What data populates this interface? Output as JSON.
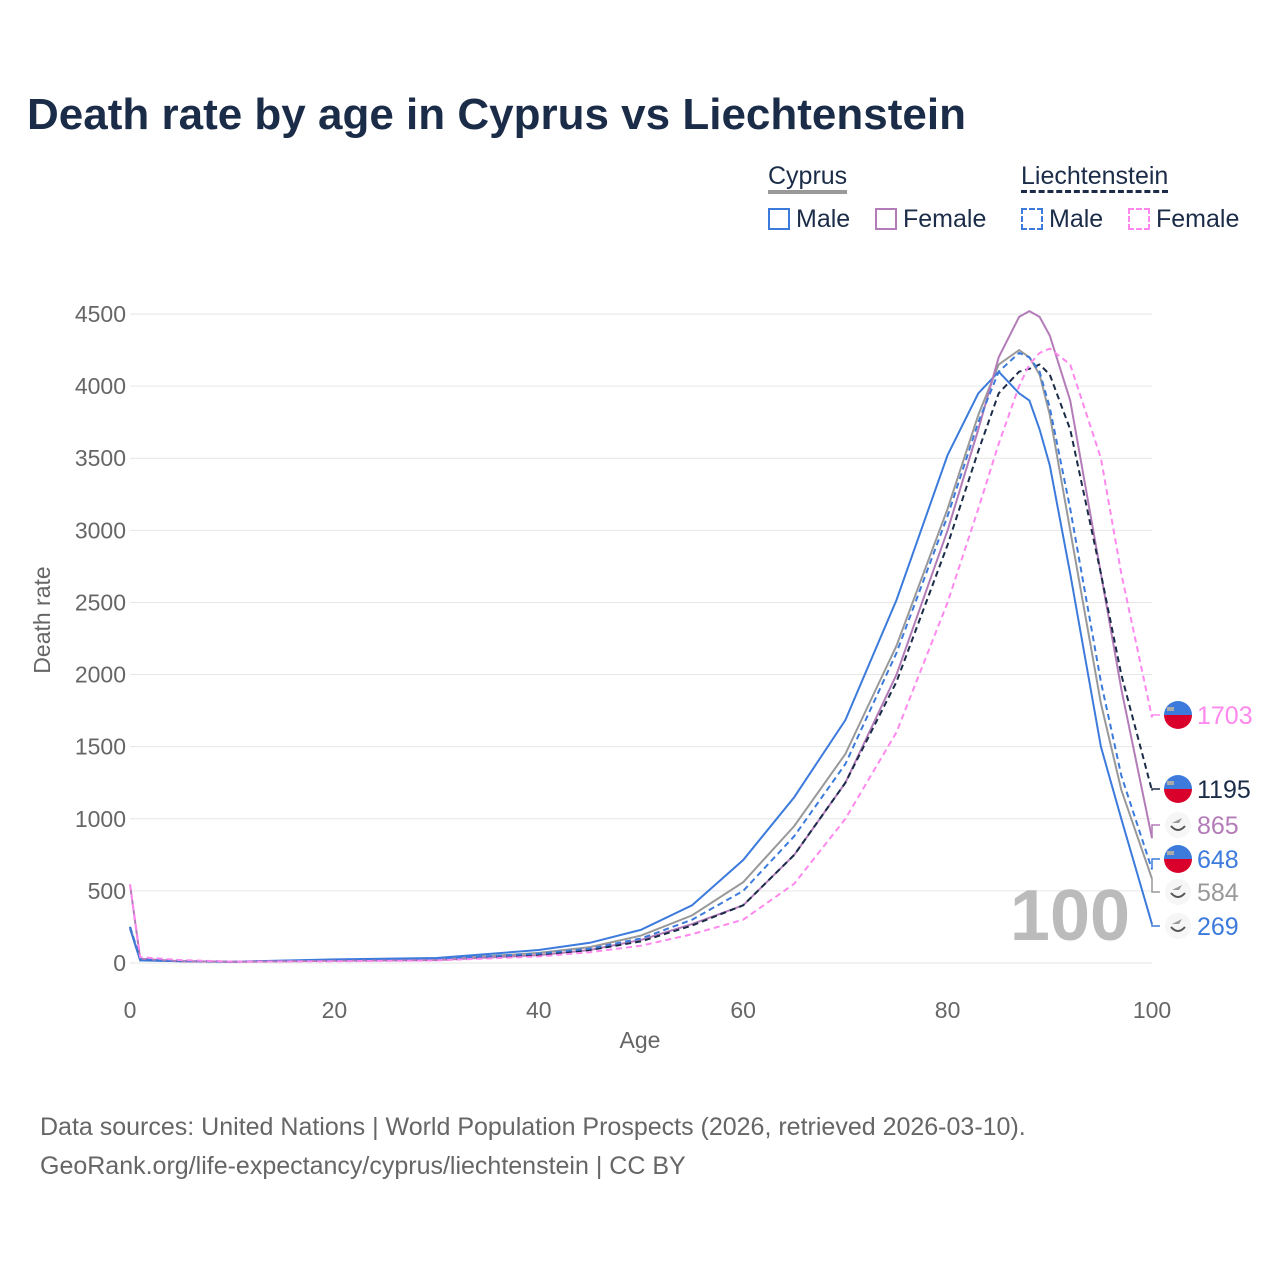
{
  "title": "Death rate by age in Cyprus vs Liechtenstein",
  "legend": {
    "cyprus": "Cyprus",
    "liechtenstein": "Liechtenstein",
    "male": "Male",
    "female": "Female"
  },
  "source": {
    "line1": "Data sources: United Nations | World Population Prospects (2026, retrieved 2026-03-10).",
    "line2": "GeoRank.org/life-expectancy/cyprus/liechtenstein | CC BY"
  },
  "chart_data": {
    "type": "line",
    "title": "Death rate by age in Cyprus vs Liechtenstein",
    "xlabel": "Age",
    "ylabel": "Death rate",
    "xlim": [
      0,
      100
    ],
    "ylim": [
      0,
      4500
    ],
    "xticks": [
      "0",
      "20",
      "40",
      "60",
      "80",
      "100"
    ],
    "yticks": [
      "0",
      "500",
      "1000",
      "1500",
      "2000",
      "2500",
      "3000",
      "3500",
      "4000",
      "4500"
    ],
    "watermark": "100",
    "x": [
      0,
      1,
      5,
      10,
      20,
      30,
      40,
      45,
      50,
      55,
      60,
      65,
      70,
      75,
      80,
      83,
      85,
      87,
      88,
      89,
      90,
      92,
      95,
      97,
      100
    ],
    "series": [
      {
        "name": "Cyprus Total",
        "color": "#999999",
        "dash": false,
        "end_label": "584",
        "flag": "cyprus",
        "values": [
          250,
          20,
          12,
          8,
          20,
          25,
          70,
          110,
          190,
          330,
          560,
          950,
          1450,
          2200,
          3150,
          3800,
          4150,
          4250,
          4200,
          4080,
          3800,
          3000,
          1800,
          1200,
          584
        ]
      },
      {
        "name": "Cyprus Male",
        "color": "#3c7bdc",
        "dash": false,
        "end_label": "269",
        "flag": "cyprus",
        "values": [
          240,
          18,
          12,
          8,
          25,
          35,
          90,
          140,
          230,
          400,
          714,
          1150,
          1685,
          2517,
          3522,
          3950,
          4100,
          3950,
          3900,
          3700,
          3450,
          2700,
          1500,
          1000,
          269
        ]
      },
      {
        "name": "Cyprus Female",
        "color": "#b37cb8",
        "dash": false,
        "end_label": "865",
        "flag": "cyprus",
        "values": [
          545,
          30,
          12,
          8,
          15,
          20,
          55,
          90,
          160,
          270,
          400,
          750,
          1250,
          2000,
          3000,
          3700,
          4200,
          4480,
          4520,
          4480,
          4350,
          3900,
          2700,
          1900,
          865
        ]
      },
      {
        "name": "Liechtenstein Total",
        "color": "#1b2c48",
        "dash": true,
        "end_label": "1195",
        "flag": "liechtenstein",
        "values": [
          250,
          25,
          15,
          10,
          15,
          22,
          55,
          90,
          150,
          260,
          400,
          750,
          1250,
          1950,
          2900,
          3550,
          3950,
          4100,
          4120,
          4150,
          4080,
          3700,
          2700,
          2000,
          1195
        ]
      },
      {
        "name": "Liechtenstein Male",
        "color": "#3c7bdc",
        "dash": true,
        "end_label": "648",
        "flag": "liechtenstein",
        "values": [
          250,
          25,
          15,
          10,
          18,
          28,
          65,
          100,
          170,
          300,
          500,
          880,
          1380,
          2150,
          3100,
          3750,
          4100,
          4230,
          4200,
          4100,
          3850,
          3150,
          1950,
          1300,
          648
        ]
      },
      {
        "name": "Liechtenstein Female",
        "color": "#ff88ee",
        "dash": true,
        "end_label": "1703",
        "flag": "liechtenstein",
        "values": [
          545,
          40,
          20,
          10,
          12,
          18,
          45,
          75,
          120,
          200,
          300,
          550,
          1000,
          1600,
          2500,
          3150,
          3600,
          4000,
          4150,
          4230,
          4260,
          4150,
          3500,
          2700,
          1703
        ]
      }
    ]
  }
}
